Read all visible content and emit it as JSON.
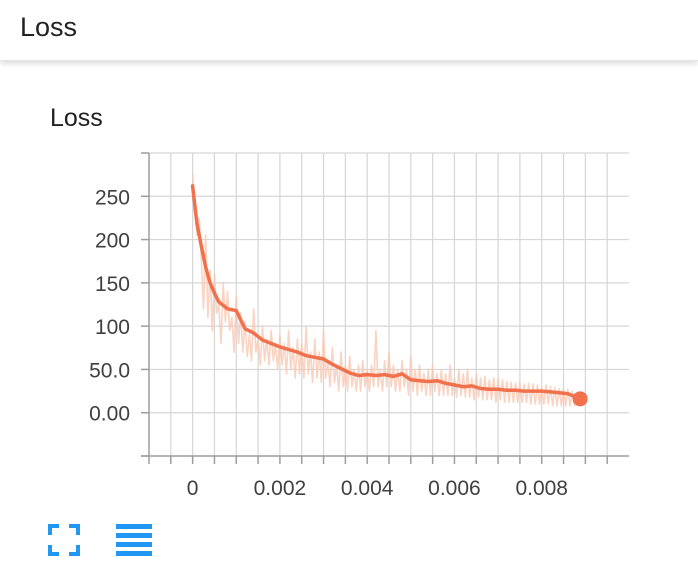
{
  "header": {
    "title": "Loss"
  },
  "card": {
    "title": "Loss"
  },
  "toolbar": {
    "expand_icon": "fullscreen-expand-icon",
    "data_icon": "data-table-icon",
    "icon_color": "#2196f3"
  },
  "chart_data": {
    "type": "line",
    "title": "Loss",
    "xlabel": "",
    "ylabel": "",
    "xlim": [
      -0.001,
      0.01
    ],
    "ylim": [
      -50,
      300
    ],
    "x_ticks": [
      0,
      0.002,
      0.004,
      0.006,
      0.008
    ],
    "x_tick_labels": [
      "0",
      "0.002",
      "0.004",
      "0.006",
      "0.008"
    ],
    "y_ticks": [
      0,
      50,
      100,
      150,
      200,
      250
    ],
    "y_tick_labels": [
      "0.00",
      "50.0",
      "100",
      "150",
      "200",
      "250"
    ],
    "grid": true,
    "legend": "none",
    "series": [
      {
        "role": "smoothed",
        "color": "#f0714b",
        "x": [
          0,
          0.0001,
          0.0002,
          0.0003,
          0.0004,
          0.0005,
          0.0006,
          0.0008,
          0.001,
          0.0012,
          0.0014,
          0.0016,
          0.0018,
          0.002,
          0.0022,
          0.0024,
          0.0026,
          0.0028,
          0.003,
          0.0032,
          0.0034,
          0.0036,
          0.0038,
          0.004,
          0.0042,
          0.0044,
          0.0046,
          0.0048,
          0.005,
          0.0052,
          0.0054,
          0.0056,
          0.0058,
          0.006,
          0.0062,
          0.0064,
          0.0066,
          0.0068,
          0.007,
          0.0072,
          0.0074,
          0.0076,
          0.0078,
          0.008,
          0.0082,
          0.0084,
          0.0086,
          0.00888
        ],
        "y": [
          262,
          218,
          192,
          168,
          150,
          138,
          128,
          120,
          118,
          97,
          92,
          84,
          80,
          76,
          73,
          70,
          66,
          64,
          62,
          56,
          51,
          46,
          43,
          44,
          43,
          44,
          42,
          45,
          38,
          37,
          36,
          37,
          34,
          32,
          30,
          31,
          28,
          27,
          27,
          26,
          26,
          25,
          25,
          25,
          24,
          23,
          22,
          16
        ]
      },
      {
        "role": "raw",
        "color": "#f9c8b3",
        "x": [
          0,
          5e-05,
          0.0001,
          0.00015,
          0.0002,
          0.00025,
          0.0003,
          0.00035,
          0.0004,
          0.00045,
          0.0005,
          0.00055,
          0.0006,
          0.00065,
          0.0007,
          0.00075,
          0.0008,
          0.00085,
          0.0009,
          0.00095,
          0.001,
          0.00105,
          0.0011,
          0.00115,
          0.0012,
          0.00125,
          0.0013,
          0.00135,
          0.0014,
          0.00145,
          0.0015,
          0.00155,
          0.0016,
          0.00165,
          0.0017,
          0.00175,
          0.0018,
          0.00185,
          0.0019,
          0.00195,
          0.002,
          0.00205,
          0.0021,
          0.00215,
          0.0022,
          0.00225,
          0.0023,
          0.00235,
          0.0024,
          0.00245,
          0.0025,
          0.00255,
          0.0026,
          0.00265,
          0.0027,
          0.00275,
          0.0028,
          0.00285,
          0.0029,
          0.00295,
          0.003,
          0.00305,
          0.0031,
          0.00315,
          0.0032,
          0.00325,
          0.0033,
          0.00335,
          0.0034,
          0.00345,
          0.0035,
          0.00355,
          0.0036,
          0.00365,
          0.0037,
          0.00375,
          0.0038,
          0.00385,
          0.0039,
          0.00395,
          0.004,
          0.00405,
          0.0041,
          0.00415,
          0.0042,
          0.00425,
          0.0043,
          0.00435,
          0.0044,
          0.00445,
          0.0045,
          0.00455,
          0.0046,
          0.00465,
          0.0047,
          0.00475,
          0.0048,
          0.00485,
          0.0049,
          0.00495,
          0.005,
          0.00505,
          0.0051,
          0.00515,
          0.0052,
          0.00525,
          0.0053,
          0.00535,
          0.0054,
          0.00545,
          0.0055,
          0.00555,
          0.0056,
          0.00565,
          0.0057,
          0.00575,
          0.0058,
          0.00585,
          0.0059,
          0.00595,
          0.006,
          0.00605,
          0.0061,
          0.00615,
          0.0062,
          0.00625,
          0.0063,
          0.00635,
          0.0064,
          0.00645,
          0.0065,
          0.00655,
          0.0066,
          0.00665,
          0.0067,
          0.00675,
          0.0068,
          0.00685,
          0.0069,
          0.00695,
          0.007,
          0.00705,
          0.0071,
          0.00715,
          0.0072,
          0.00725,
          0.0073,
          0.00735,
          0.0074,
          0.00745,
          0.0075,
          0.00755,
          0.0076,
          0.00765,
          0.0077,
          0.00775,
          0.0078,
          0.00785,
          0.0079,
          0.00795,
          0.008,
          0.00805,
          0.0081,
          0.00815,
          0.0082,
          0.00825,
          0.0083,
          0.00835,
          0.0084,
          0.00845,
          0.0085,
          0.00855,
          0.0086,
          0.00865,
          0.0087,
          0.00875,
          0.0088,
          0.00885
        ],
        "y": [
          275,
          240,
          205,
          225,
          175,
          120,
          205,
          110,
          165,
          95,
          160,
          115,
          125,
          80,
          150,
          105,
          140,
          95,
          110,
          70,
          135,
          80,
          115,
          70,
          105,
          65,
          90,
          60,
          120,
          70,
          85,
          55,
          100,
          60,
          85,
          55,
          95,
          60,
          80,
          50,
          90,
          55,
          80,
          45,
          95,
          50,
          75,
          40,
          85,
          45,
          80,
          40,
          100,
          45,
          70,
          35,
          85,
          40,
          70,
          35,
          95,
          40,
          60,
          30,
          75,
          35,
          55,
          25,
          70,
          30,
          55,
          25,
          65,
          30,
          50,
          25,
          55,
          25,
          60,
          30,
          50,
          25,
          55,
          30,
          95,
          30,
          50,
          25,
          60,
          30,
          70,
          30,
          55,
          25,
          50,
          25,
          60,
          30,
          50,
          20,
          65,
          25,
          50,
          20,
          55,
          25,
          45,
          20,
          50,
          20,
          55,
          25,
          45,
          20,
          50,
          20,
          45,
          20,
          55,
          20,
          40,
          18,
          50,
          20,
          45,
          18,
          50,
          18,
          40,
          15,
          45,
          18,
          40,
          15,
          42,
          15,
          38,
          15,
          40,
          12,
          40,
          15,
          38,
          12,
          36,
          12,
          35,
          12,
          34,
          12,
          35,
          12,
          33,
          12,
          34,
          10,
          33,
          10,
          32,
          10,
          30,
          10,
          32,
          10,
          30,
          8,
          29,
          8,
          28,
          8,
          28,
          8,
          27,
          8,
          25,
          8,
          20,
          12
        ]
      }
    ]
  }
}
